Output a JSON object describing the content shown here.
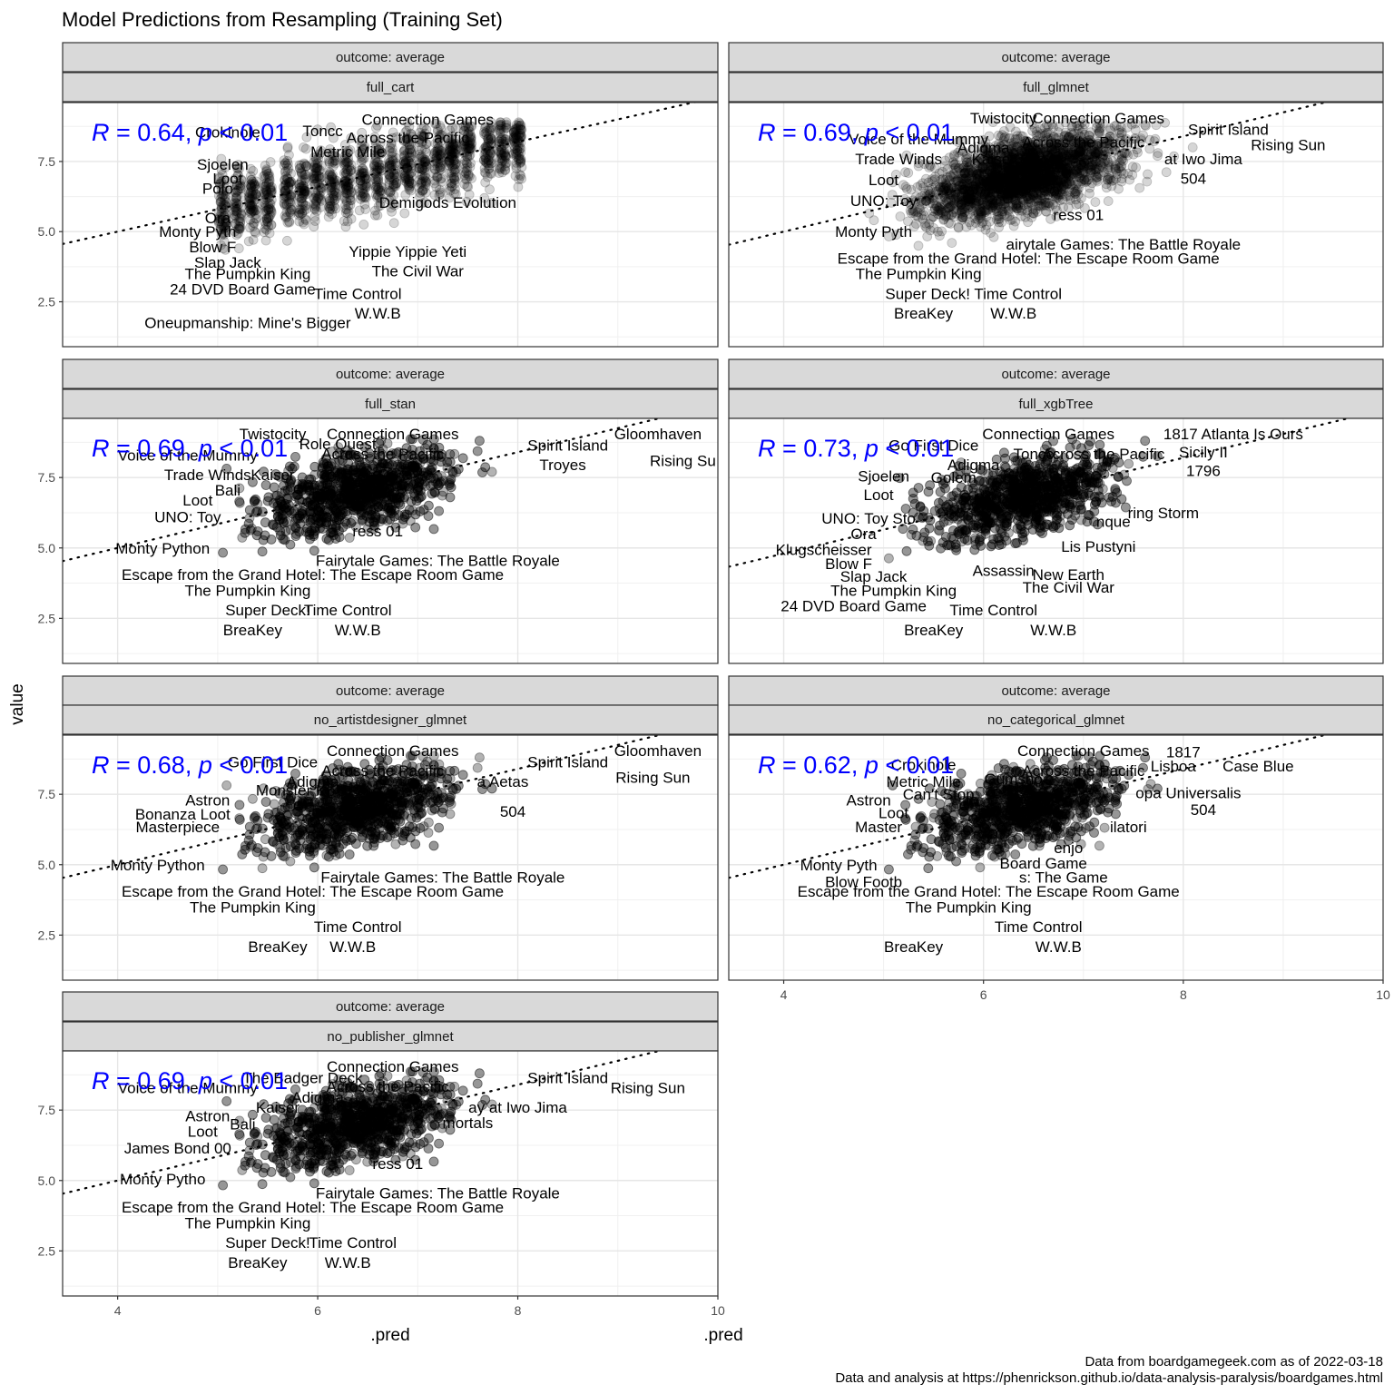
{
  "chart_data": {
    "type": "scatter",
    "title": "Model Predictions from Resampling (Training Set)",
    "xlabel": ".pred",
    "ylabel": "value",
    "xlim": [
      3.45,
      10.0
    ],
    "ylim": [
      0.9,
      9.6
    ],
    "x_ticks": [
      4,
      6,
      8,
      10
    ],
    "x_tick_labels": [
      "4",
      "6",
      "8",
      "10"
    ],
    "y_ticks": [
      2.5,
      5.0,
      7.5
    ],
    "y_tick_labels": [
      "2.5",
      "5.0",
      "7.5"
    ],
    "grid": true,
    "legend": "none",
    "reference_line": {
      "style": "dotted",
      "color": "#000000"
    },
    "annotation_color": "#0000ff",
    "point_color": "#000000",
    "caption": [
      "Data from boardgamegeek.com as of 2022-03-18",
      "Data and analysis at https://phenrickson.github.io/data-analysis-paralysis/boardgames.html"
    ],
    "panels": [
      {
        "strip_top": "outcome: average",
        "strip_bottom": "full_cart",
        "r": "0.64",
        "p": "0.01",
        "line": {
          "intercept": 1.8,
          "slope": 0.8
        },
        "cloud": {
          "xmin": 5.0,
          "xmax": 8.0,
          "mode": "bands",
          "bands": [
            5.05,
            5.2,
            5.35,
            5.5,
            5.7,
            5.85,
            6.0,
            6.15,
            6.3,
            6.45,
            6.6,
            6.75,
            6.9,
            7.05,
            7.2,
            7.35,
            7.5,
            7.7,
            7.85,
            8.0
          ]
        },
        "labels": [
          {
            "x": 7.1,
            "y": 9.0,
            "t": "Connection Games"
          },
          {
            "x": 5.1,
            "y": 8.55,
            "t": "Crokinole"
          },
          {
            "x": 6.05,
            "y": 8.6,
            "t": "Toncc"
          },
          {
            "x": 6.9,
            "y": 8.35,
            "t": "Across the Pacific"
          },
          {
            "x": 6.3,
            "y": 7.85,
            "t": "Metric Mile"
          },
          {
            "x": 5.05,
            "y": 7.4,
            "t": "Sjoelen"
          },
          {
            "x": 5.1,
            "y": 6.9,
            "t": "Loot"
          },
          {
            "x": 5.0,
            "y": 6.55,
            "t": "Polo"
          },
          {
            "x": 7.3,
            "y": 6.05,
            "t": "Demigods Evolution"
          },
          {
            "x": 5.0,
            "y": 5.5,
            "t": "Ora"
          },
          {
            "x": 4.8,
            "y": 5.0,
            "t": "Monty Pyth"
          },
          {
            "x": 4.95,
            "y": 4.45,
            "t": "Blow F"
          },
          {
            "x": 5.1,
            "y": 3.9,
            "t": "Slap Jack"
          },
          {
            "x": 6.9,
            "y": 4.3,
            "t": "Yippie Yippie Yeti"
          },
          {
            "x": 7.0,
            "y": 3.6,
            "t": "The Civil War"
          },
          {
            "x": 5.3,
            "y": 3.5,
            "t": "The Pumpkin King"
          },
          {
            "x": 5.25,
            "y": 2.95,
            "t": "24 DVD Board Game"
          },
          {
            "x": 6.4,
            "y": 2.8,
            "t": "Time Control"
          },
          {
            "x": 6.6,
            "y": 2.1,
            "t": "W.W.B"
          },
          {
            "x": 5.3,
            "y": 1.75,
            "t": "Oneupmanship: Mine's Bigger"
          }
        ]
      },
      {
        "strip_top": "outcome: average",
        "strip_bottom": "full_glmnet",
        "r": "0.69",
        "p": "0.01",
        "line": {
          "intercept": 1.6,
          "slope": 0.85
        },
        "cloud": {
          "xmin": 4.8,
          "xmax": 9.4,
          "mode": "blob"
        },
        "labels": [
          {
            "x": 6.2,
            "y": 9.05,
            "t": "Twistocity"
          },
          {
            "x": 7.15,
            "y": 9.05,
            "t": "Connection Games"
          },
          {
            "x": 8.45,
            "y": 8.65,
            "t": "Spirit Island"
          },
          {
            "x": 5.35,
            "y": 8.3,
            "t": "Voice of the Mummy"
          },
          {
            "x": 6.0,
            "y": 8.0,
            "t": "Adigma"
          },
          {
            "x": 7.0,
            "y": 8.2,
            "t": "Across the Pacific"
          },
          {
            "x": 9.05,
            "y": 8.1,
            "t": "Rising Sun"
          },
          {
            "x": 5.15,
            "y": 7.6,
            "t": "Trade Winds"
          },
          {
            "x": 6.1,
            "y": 7.6,
            "t": "Kaiser"
          },
          {
            "x": 8.2,
            "y": 7.6,
            "t": "at Iwo Jima"
          },
          {
            "x": 8.1,
            "y": 6.9,
            "t": "504"
          },
          {
            "x": 5.0,
            "y": 6.85,
            "t": "Loot"
          },
          {
            "x": 5.0,
            "y": 6.1,
            "t": "UNO: Toy"
          },
          {
            "x": 6.95,
            "y": 5.6,
            "t": "ress 01"
          },
          {
            "x": 4.9,
            "y": 5.0,
            "t": "Monty Pyth"
          },
          {
            "x": 7.4,
            "y": 4.55,
            "t": "airytale Games: The Battle Royale"
          },
          {
            "x": 6.45,
            "y": 4.05,
            "t": "Escape from the Grand Hotel: The Escape Room Game"
          },
          {
            "x": 5.35,
            "y": 3.5,
            "t": "The Pumpkin King"
          },
          {
            "x": 5.9,
            "y": 2.8,
            "t": "Super Deck! Time Control"
          },
          {
            "x": 5.4,
            "y": 2.1,
            "t": "BreaKey"
          },
          {
            "x": 6.3,
            "y": 2.1,
            "t": "W.W.B"
          }
        ]
      },
      {
        "strip_top": "outcome: average",
        "strip_bottom": "full_stan",
        "r": "0.69",
        "p": "0.01",
        "line": {
          "intercept": 1.6,
          "slope": 0.85
        },
        "cloud": {
          "xmin": 4.8,
          "xmax": 9.6,
          "mode": "blob"
        },
        "labels": [
          {
            "x": 5.55,
            "y": 9.05,
            "t": "Twistocity"
          },
          {
            "x": 6.2,
            "y": 8.7,
            "t": "Role Quest"
          },
          {
            "x": 6.75,
            "y": 9.05,
            "t": "Connection Games"
          },
          {
            "x": 8.5,
            "y": 8.65,
            "t": "Spirit Island"
          },
          {
            "x": 9.4,
            "y": 9.05,
            "t": "Gloomhaven"
          },
          {
            "x": 6.65,
            "y": 8.35,
            "t": "Across the Pacific"
          },
          {
            "x": 4.7,
            "y": 8.3,
            "t": "Voice of the Mummy"
          },
          {
            "x": 8.45,
            "y": 7.95,
            "t": "Troyes"
          },
          {
            "x": 9.65,
            "y": 8.1,
            "t": "Rising Su"
          },
          {
            "x": 4.9,
            "y": 7.6,
            "t": "Trade Winds"
          },
          {
            "x": 5.55,
            "y": 7.6,
            "t": "Kaiser"
          },
          {
            "x": 5.1,
            "y": 7.05,
            "t": "Bali"
          },
          {
            "x": 4.8,
            "y": 6.7,
            "t": "Loot"
          },
          {
            "x": 4.7,
            "y": 6.1,
            "t": "UNO: Toy"
          },
          {
            "x": 6.6,
            "y": 5.6,
            "t": "ress 01"
          },
          {
            "x": 4.45,
            "y": 5.0,
            "t": "Monty Python"
          },
          {
            "x": 7.2,
            "y": 4.55,
            "t": "Fairytale Games: The Battle Royale"
          },
          {
            "x": 5.95,
            "y": 4.05,
            "t": "Escape from the Grand Hotel: The Escape Room Game"
          },
          {
            "x": 5.3,
            "y": 3.5,
            "t": "The Pumpkin King"
          },
          {
            "x": 5.5,
            "y": 2.8,
            "t": "Super Deck!"
          },
          {
            "x": 6.3,
            "y": 2.8,
            "t": "Time Control"
          },
          {
            "x": 5.35,
            "y": 2.1,
            "t": "BreaKey"
          },
          {
            "x": 6.4,
            "y": 2.1,
            "t": "W.W.B"
          }
        ]
      },
      {
        "strip_top": "outcome: average",
        "strip_bottom": "full_xgbTree",
        "r": "0.73",
        "p": "0.01",
        "line": {
          "intercept": 1.4,
          "slope": 0.85
        },
        "cloud": {
          "xmin": 4.5,
          "xmax": 9.2,
          "mode": "blob"
        },
        "labels": [
          {
            "x": 8.5,
            "y": 9.05,
            "t": "1817 Atlanta Is Ours"
          },
          {
            "x": 5.5,
            "y": 8.65,
            "t": "Go First Dice"
          },
          {
            "x": 6.65,
            "y": 9.05,
            "t": "Connection Games"
          },
          {
            "x": 6.5,
            "y": 8.35,
            "t": "Toncc"
          },
          {
            "x": 7.2,
            "y": 8.35,
            "t": "Across the Pacific"
          },
          {
            "x": 8.2,
            "y": 8.4,
            "t": "Sicily II"
          },
          {
            "x": 5.9,
            "y": 7.95,
            "t": "Adigma"
          },
          {
            "x": 8.2,
            "y": 7.75,
            "t": "1796"
          },
          {
            "x": 5.0,
            "y": 7.55,
            "t": "Sjoelen"
          },
          {
            "x": 5.7,
            "y": 7.5,
            "t": "Golem"
          },
          {
            "x": 4.95,
            "y": 6.9,
            "t": "Loot"
          },
          {
            "x": 7.8,
            "y": 6.25,
            "t": "ring Storm"
          },
          {
            "x": 4.85,
            "y": 6.05,
            "t": "UNO: Toy Sto"
          },
          {
            "x": 7.3,
            "y": 5.95,
            "t": "nque"
          },
          {
            "x": 4.8,
            "y": 5.5,
            "t": "Ora"
          },
          {
            "x": 7.15,
            "y": 5.05,
            "t": "Lis Pustyni"
          },
          {
            "x": 4.4,
            "y": 4.95,
            "t": "Klugscheisser"
          },
          {
            "x": 4.65,
            "y": 4.45,
            "t": "Blow F"
          },
          {
            "x": 6.2,
            "y": 4.2,
            "t": "Assassin"
          },
          {
            "x": 6.85,
            "y": 4.05,
            "t": "New Earth"
          },
          {
            "x": 4.9,
            "y": 4.0,
            "t": "Slap Jack"
          },
          {
            "x": 6.85,
            "y": 3.6,
            "t": "The Civil War"
          },
          {
            "x": 5.1,
            "y": 3.5,
            "t": "The Pumpkin King"
          },
          {
            "x": 4.7,
            "y": 2.95,
            "t": "24 DVD Board Game"
          },
          {
            "x": 6.1,
            "y": 2.8,
            "t": "Time Control"
          },
          {
            "x": 5.5,
            "y": 2.1,
            "t": "BreaKey"
          },
          {
            "x": 6.7,
            "y": 2.1,
            "t": "W.W.B"
          }
        ]
      },
      {
        "strip_top": "outcome: average",
        "strip_bottom": "no_artistdesigner_glmnet",
        "r": "0.68",
        "p": "0.01",
        "line": {
          "intercept": 1.6,
          "slope": 0.85
        },
        "cloud": {
          "xmin": 4.8,
          "xmax": 9.4,
          "mode": "blob"
        },
        "labels": [
          {
            "x": 5.55,
            "y": 8.65,
            "t": "Go First Dice"
          },
          {
            "x": 6.75,
            "y": 9.05,
            "t": "Connection Games"
          },
          {
            "x": 8.5,
            "y": 8.65,
            "t": "Spirit Island"
          },
          {
            "x": 9.4,
            "y": 9.05,
            "t": "Gloomhaven"
          },
          {
            "x": 6.65,
            "y": 8.35,
            "t": "Across the Pacific"
          },
          {
            "x": 9.35,
            "y": 8.1,
            "t": "Rising Sun"
          },
          {
            "x": 5.95,
            "y": 7.95,
            "t": "Adigma"
          },
          {
            "x": 7.85,
            "y": 7.95,
            "t": "a Aetas"
          },
          {
            "x": 5.75,
            "y": 7.65,
            "t": "Monster Ki"
          },
          {
            "x": 4.9,
            "y": 7.3,
            "t": "Astron"
          },
          {
            "x": 4.65,
            "y": 6.8,
            "t": "Bonanza Loot"
          },
          {
            "x": 4.6,
            "y": 6.35,
            "t": "Masterpiece"
          },
          {
            "x": 7.95,
            "y": 6.9,
            "t": "504"
          },
          {
            "x": 4.4,
            "y": 5.0,
            "t": "Monty Python"
          },
          {
            "x": 7.25,
            "y": 4.55,
            "t": "Fairytale Games: The Battle Royale"
          },
          {
            "x": 5.95,
            "y": 4.05,
            "t": "Escape from the Grand Hotel: The Escape Room Game"
          },
          {
            "x": 5.35,
            "y": 3.5,
            "t": "The Pumpkin King"
          },
          {
            "x": 6.4,
            "y": 2.8,
            "t": "Time Control"
          },
          {
            "x": 5.6,
            "y": 2.1,
            "t": "BreaKey"
          },
          {
            "x": 6.35,
            "y": 2.1,
            "t": "W.W.B"
          }
        ]
      },
      {
        "strip_top": "outcome: average",
        "strip_bottom": "no_categorical_glmnet",
        "r": "0.62",
        "p": "0.01",
        "line": {
          "intercept": 1.6,
          "slope": 0.85
        },
        "cloud": {
          "xmin": 4.8,
          "xmax": 8.8,
          "mode": "blob"
        },
        "labels": [
          {
            "x": 7.0,
            "y": 9.05,
            "t": "Connection Games"
          },
          {
            "x": 8.0,
            "y": 9.0,
            "t": "1817"
          },
          {
            "x": 5.4,
            "y": 8.55,
            "t": "Crokinole"
          },
          {
            "x": 7.0,
            "y": 8.35,
            "t": "Across the Pacific"
          },
          {
            "x": 7.9,
            "y": 8.5,
            "t": "Lisboa"
          },
          {
            "x": 8.75,
            "y": 8.5,
            "t": "Case Blue"
          },
          {
            "x": 5.4,
            "y": 7.95,
            "t": "Metric Mile"
          },
          {
            "x": 6.3,
            "y": 8.05,
            "t": "Gumsho"
          },
          {
            "x": 4.85,
            "y": 7.3,
            "t": "Astron"
          },
          {
            "x": 5.55,
            "y": 7.5,
            "t": "Can't Stop"
          },
          {
            "x": 8.05,
            "y": 7.55,
            "t": "opa Universalis"
          },
          {
            "x": 8.2,
            "y": 6.95,
            "t": "504"
          },
          {
            "x": 5.1,
            "y": 6.85,
            "t": "Loot"
          },
          {
            "x": 4.95,
            "y": 6.35,
            "t": "Master"
          },
          {
            "x": 7.45,
            "y": 6.35,
            "t": "ilatori"
          },
          {
            "x": 6.85,
            "y": 5.6,
            "t": "enjo"
          },
          {
            "x": 6.6,
            "y": 5.05,
            "t": "Board Game"
          },
          {
            "x": 4.55,
            "y": 5.0,
            "t": "Monty Pyth"
          },
          {
            "x": 6.8,
            "y": 4.55,
            "t": "s: The Game"
          },
          {
            "x": 4.8,
            "y": 4.4,
            "t": "Blow Footb"
          },
          {
            "x": 6.05,
            "y": 4.05,
            "t": "Escape from the Grand Hotel: The Escape Room Game"
          },
          {
            "x": 5.85,
            "y": 3.5,
            "t": "The Pumpkin King"
          },
          {
            "x": 6.55,
            "y": 2.8,
            "t": "Time Control"
          },
          {
            "x": 5.3,
            "y": 2.1,
            "t": "BreaKey"
          },
          {
            "x": 6.75,
            "y": 2.1,
            "t": "W.W.B"
          }
        ]
      },
      {
        "strip_top": "outcome: average",
        "strip_bottom": "no_publisher_glmnet",
        "r": "0.69",
        "p": "0.01",
        "line": {
          "intercept": 1.6,
          "slope": 0.85
        },
        "cloud": {
          "xmin": 4.8,
          "xmax": 9.3,
          "mode": "blob"
        },
        "labels": [
          {
            "x": 6.75,
            "y": 9.05,
            "t": "Connection Games"
          },
          {
            "x": 5.85,
            "y": 8.65,
            "t": "The Badger Deck"
          },
          {
            "x": 8.5,
            "y": 8.65,
            "t": "Spirit Island"
          },
          {
            "x": 6.7,
            "y": 8.35,
            "t": "Across the Pacific"
          },
          {
            "x": 9.3,
            "y": 8.3,
            "t": "Rising Sun"
          },
          {
            "x": 4.7,
            "y": 8.3,
            "t": "Voice of the Mummy"
          },
          {
            "x": 6.0,
            "y": 7.95,
            "t": "Adigma"
          },
          {
            "x": 5.6,
            "y": 7.6,
            "t": "Kaiser"
          },
          {
            "x": 8.0,
            "y": 7.6,
            "t": "ay at Iwo Jima"
          },
          {
            "x": 4.9,
            "y": 7.3,
            "t": "Astron"
          },
          {
            "x": 5.25,
            "y": 7.0,
            "t": "Bali"
          },
          {
            "x": 4.85,
            "y": 6.75,
            "t": "Loot"
          },
          {
            "x": 7.5,
            "y": 7.05,
            "t": "mortals"
          },
          {
            "x": 4.6,
            "y": 6.15,
            "t": "James Bond 00"
          },
          {
            "x": 6.8,
            "y": 5.6,
            "t": "ress 01"
          },
          {
            "x": 4.45,
            "y": 5.05,
            "t": "Monty Pytho"
          },
          {
            "x": 7.2,
            "y": 4.55,
            "t": "Fairytale Games: The Battle Royale"
          },
          {
            "x": 5.95,
            "y": 4.05,
            "t": "Escape from the Grand Hotel: The Escape Room Game"
          },
          {
            "x": 5.3,
            "y": 3.5,
            "t": "The Pumpkin King"
          },
          {
            "x": 5.5,
            "y": 2.8,
            "t": "Super Deck!"
          },
          {
            "x": 6.35,
            "y": 2.8,
            "t": "Time Control"
          },
          {
            "x": 5.4,
            "y": 2.1,
            "t": "BreaKey"
          },
          {
            "x": 6.3,
            "y": 2.1,
            "t": "W.W.B"
          }
        ]
      }
    ]
  }
}
